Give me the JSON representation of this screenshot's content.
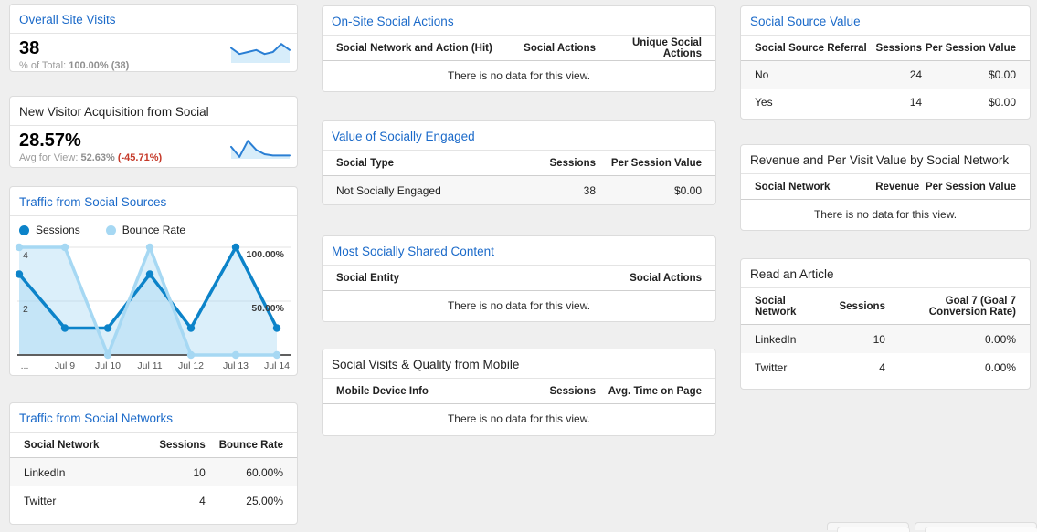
{
  "messages": {
    "no_data": "There is no data for this view."
  },
  "colors": {
    "link_title": "#1b6ac9",
    "sessions_line": "#0c83c9",
    "bounce_line": "#a6d8f3",
    "area_fill": "rgba(166,216,243,0.40)",
    "spark_line": "#2a7fd4",
    "spark_fill": "rgba(166,216,243,0.45)",
    "delta_negative": "#c53929"
  },
  "cards": {
    "overall": {
      "title": "Overall Site Visits",
      "value": "38",
      "subtext_label": "% of Total:",
      "subtext_value": "100.00% (38)"
    },
    "new_visitor": {
      "title": "New Visitor Acquisition from Social",
      "value": "28.57%",
      "subtext_label": "Avg for View:",
      "subtext_value": "52.63%",
      "delta": "(-45.71%)"
    },
    "traffic_chart": {
      "title": "Traffic from Social Sources",
      "legend": [
        {
          "label": "Sessions",
          "color": "#0c83c9"
        },
        {
          "label": "Bounce Rate",
          "color": "#a6d8f3"
        }
      ]
    },
    "traffic_networks": {
      "title": "Traffic from Social Networks",
      "headers": [
        "Social Network",
        "Sessions",
        "Bounce Rate"
      ],
      "rows": [
        [
          "LinkedIn",
          "10",
          "60.00%"
        ],
        [
          "Twitter",
          "4",
          "25.00%"
        ]
      ]
    },
    "onsite_actions": {
      "title": "On-Site Social Actions",
      "headers": [
        "Social Network and Action (Hit)",
        "Social Actions",
        "Unique Social Actions"
      ]
    },
    "socially_engaged": {
      "title": "Value of Socially Engaged",
      "headers": [
        "Social Type",
        "Sessions",
        "Per Session Value"
      ],
      "rows": [
        [
          "Not Socially Engaged",
          "38",
          "$0.00"
        ]
      ]
    },
    "shared_content": {
      "title": "Most Socially Shared Content",
      "headers": [
        "Social Entity",
        "Social Actions"
      ]
    },
    "mobile_quality": {
      "title": "Social Visits & Quality from Mobile",
      "headers": [
        "Mobile Device Info",
        "Sessions",
        "Avg. Time on Page"
      ]
    },
    "source_value": {
      "title": "Social Source Value",
      "headers": [
        "Social Source Referral",
        "Sessions",
        "Per Session Value"
      ],
      "rows": [
        [
          "No",
          "24",
          "$0.00"
        ],
        [
          "Yes",
          "14",
          "$0.00"
        ]
      ]
    },
    "revenue_by_network": {
      "title": "Revenue and Per Visit Value by Social Network",
      "headers": [
        "Social Network",
        "Revenue",
        "Per Session Value"
      ]
    },
    "read_article": {
      "title": "Read an Article",
      "headers": [
        "Social Network",
        "Sessions",
        "Goal 7 (Goal 7 Conversion Rate)"
      ],
      "rows": [
        [
          "LinkedIn",
          "10",
          "0.00%"
        ],
        [
          "Twitter",
          "4",
          "0.00%"
        ]
      ]
    }
  },
  "chart_data": [
    {
      "id": "traffic",
      "type": "line",
      "title": "Traffic from Social Sources",
      "x": [
        "...",
        "Jul 9",
        "Jul 10",
        "Jul 11",
        "Jul 12",
        "Jul 13",
        "Jul 14"
      ],
      "series": [
        {
          "name": "Sessions",
          "axis": "left",
          "color": "#0c83c9",
          "fill": "rgba(166,216,243,0.40)",
          "values": [
            3,
            1,
            1,
            3,
            1,
            4,
            1
          ]
        },
        {
          "name": "Bounce Rate",
          "axis": "right",
          "color": "#a6d8f3",
          "fill": "rgba(166,216,243,0.40)",
          "values": [
            100,
            100,
            0,
            100,
            0,
            0,
            0
          ]
        }
      ],
      "left_axis": {
        "max": 4,
        "ticks": [
          4,
          2
        ],
        "labels": [
          "4",
          "2"
        ]
      },
      "right_axis": {
        "max": 100,
        "ticks": [
          100,
          50
        ],
        "labels": [
          "100.00%",
          "50.00%"
        ]
      },
      "grid": true,
      "legend_position": "top"
    },
    {
      "id": "spark_overall",
      "type": "area",
      "title": "Overall Site Visits trend (sparkline, relative scale 0-10)",
      "values": [
        7,
        4,
        5,
        6,
        4,
        5,
        9,
        6
      ]
    },
    {
      "id": "spark_new_visitor",
      "type": "area",
      "title": "New Visitor Acquisition trend (sparkline, relative scale 0-10)",
      "values": [
        5.5,
        0.5,
        8.5,
        4,
        1.8,
        1.2,
        1.2,
        1.2
      ]
    }
  ]
}
